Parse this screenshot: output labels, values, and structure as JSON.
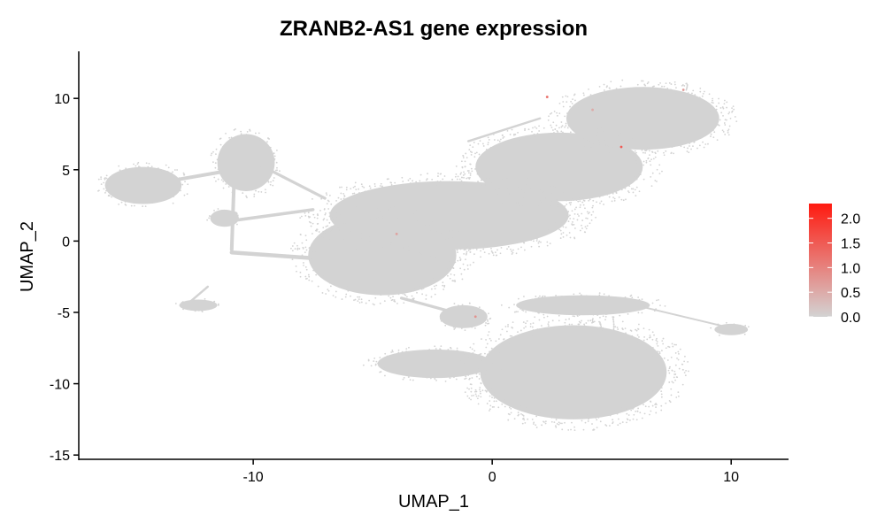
{
  "chart_data": {
    "type": "scatter",
    "title": "ZRANB2-AS1 gene expression",
    "xlabel": "UMAP_1",
    "ylabel": "UMAP_2",
    "xlim": [
      -17.3,
      12.4
    ],
    "ylim": [
      -15.3,
      13.3
    ],
    "x_ticks": [
      -10,
      0,
      10
    ],
    "y_ticks": [
      -15,
      -10,
      -5,
      0,
      5,
      10
    ],
    "grid": false,
    "legend": {
      "placement": "right",
      "ticks": [
        "0.0",
        "0.5",
        "1.0",
        "1.5",
        "2.0"
      ],
      "tick_values": [
        0.0,
        0.5,
        1.0,
        1.5,
        2.0
      ],
      "range": [
        0.0,
        2.3
      ],
      "low_color": "#d3d3d3",
      "high_color": "#ff1a10"
    },
    "base_color": "#d3d3d3",
    "clusters": [
      {
        "center": [
          -14.6,
          3.9
        ],
        "radius": [
          1.6,
          1.3
        ],
        "kind": "blob"
      },
      {
        "center": [
          -10.3,
          5.5
        ],
        "radius": [
          1.2,
          2.0
        ],
        "kind": "blob"
      },
      {
        "center": [
          -11.2,
          1.6
        ],
        "radius": [
          0.6,
          0.6
        ],
        "kind": "blob"
      },
      {
        "center": [
          -12.3,
          -4.5
        ],
        "radius": [
          0.8,
          0.4
        ],
        "kind": "blob"
      },
      {
        "center": [
          -4.6,
          -1.0
        ],
        "radius": [
          3.1,
          2.8
        ],
        "kind": "blob"
      },
      {
        "center": [
          -1.8,
          1.8
        ],
        "radius": [
          5.0,
          2.4
        ],
        "kind": "blob"
      },
      {
        "center": [
          2.8,
          5.2
        ],
        "radius": [
          3.5,
          2.4
        ],
        "kind": "blob"
      },
      {
        "center": [
          6.3,
          8.6
        ],
        "radius": [
          3.2,
          2.2
        ],
        "kind": "blob"
      },
      {
        "center": [
          3.4,
          -9.2
        ],
        "radius": [
          3.9,
          3.3
        ],
        "kind": "blob"
      },
      {
        "center": [
          -2.4,
          -8.6
        ],
        "radius": [
          2.4,
          1.0
        ],
        "kind": "blob"
      },
      {
        "center": [
          -1.2,
          -5.3
        ],
        "radius": [
          1.0,
          0.8
        ],
        "kind": "blob"
      },
      {
        "center": [
          3.8,
          -4.5
        ],
        "radius": [
          2.8,
          0.7
        ],
        "kind": "blob"
      },
      {
        "center": [
          10.0,
          -6.2
        ],
        "radius": [
          0.7,
          0.4
        ],
        "kind": "blob"
      }
    ],
    "streams": [
      {
        "from": [
          -13.2,
          4.3
        ],
        "to": [
          -10.8,
          5.0
        ],
        "width": 0.25
      },
      {
        "from": [
          -10.8,
          4.3
        ],
        "to": [
          -10.9,
          -0.6
        ],
        "width": 0.25
      },
      {
        "from": [
          -10.9,
          -0.8
        ],
        "to": [
          -7.5,
          -1.2
        ],
        "width": 0.28
      },
      {
        "from": [
          -11.0,
          1.4
        ],
        "to": [
          -7.5,
          2.2
        ],
        "width": 0.22
      },
      {
        "from": [
          -9.8,
          5.4
        ],
        "to": [
          -7.0,
          3.0
        ],
        "width": 0.2
      },
      {
        "from": [
          -12.6,
          -4.2
        ],
        "to": [
          -11.9,
          -3.2
        ],
        "width": 0.15
      },
      {
        "from": [
          6.0,
          -4.5
        ],
        "to": [
          10.0,
          -6.1
        ],
        "width": 0.12
      },
      {
        "from": [
          -3.8,
          -4.0
        ],
        "to": [
          -1.6,
          -5.0
        ],
        "width": 0.2
      },
      {
        "from": [
          -1.0,
          7.0
        ],
        "to": [
          2.0,
          8.6
        ],
        "width": 0.15
      }
    ],
    "expressed_points": [
      {
        "x": 2.3,
        "y": 10.1,
        "value": 1.2
      },
      {
        "x": 5.4,
        "y": 6.6,
        "value": 1.5
      },
      {
        "x": -0.7,
        "y": -5.3,
        "value": 0.8
      },
      {
        "x": -4.0,
        "y": 0.5,
        "value": 0.6
      },
      {
        "x": 8.0,
        "y": 10.6,
        "value": 0.7
      },
      {
        "x": 4.2,
        "y": 9.2,
        "value": 0.5
      }
    ]
  }
}
